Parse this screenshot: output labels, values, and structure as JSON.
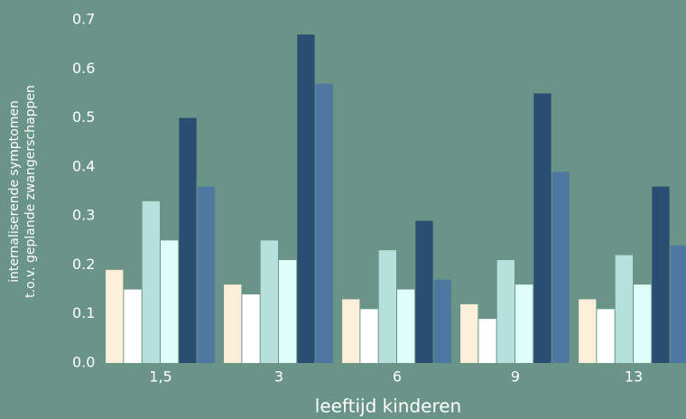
{
  "chart_data": {
    "type": "bar",
    "categories": [
      "1,5",
      "3",
      "6",
      "9",
      "13"
    ],
    "series": [
      {
        "color": "#fbefd9",
        "values": [
          0.19,
          0.16,
          0.13,
          0.12,
          0.13
        ]
      },
      {
        "color": "#ffffff",
        "values": [
          0.15,
          0.14,
          0.11,
          0.09,
          0.11
        ]
      },
      {
        "color": "#b5e0dc",
        "values": [
          0.33,
          0.25,
          0.23,
          0.21,
          0.22
        ]
      },
      {
        "color": "#dffdf9",
        "values": [
          0.25,
          0.21,
          0.15,
          0.16,
          0.16
        ]
      },
      {
        "color": "#2a4d72",
        "values": [
          0.5,
          0.67,
          0.29,
          0.55,
          0.36
        ]
      },
      {
        "color": "#4e78a0",
        "values": [
          0.36,
          0.57,
          0.17,
          0.39,
          0.24
        ]
      }
    ],
    "xlabel": "leeftijd kinderen",
    "ylabel": [
      "internaliserende symptomen",
      "t.o.v. geplande zwangerschappen"
    ],
    "ylim": [
      0,
      0.7
    ],
    "yticks": [
      {
        "value": 0,
        "label": "0.0"
      },
      0.1,
      0.2,
      0.3,
      0.4,
      0.5,
      0.6,
      0.7
    ],
    "grid": false
  }
}
